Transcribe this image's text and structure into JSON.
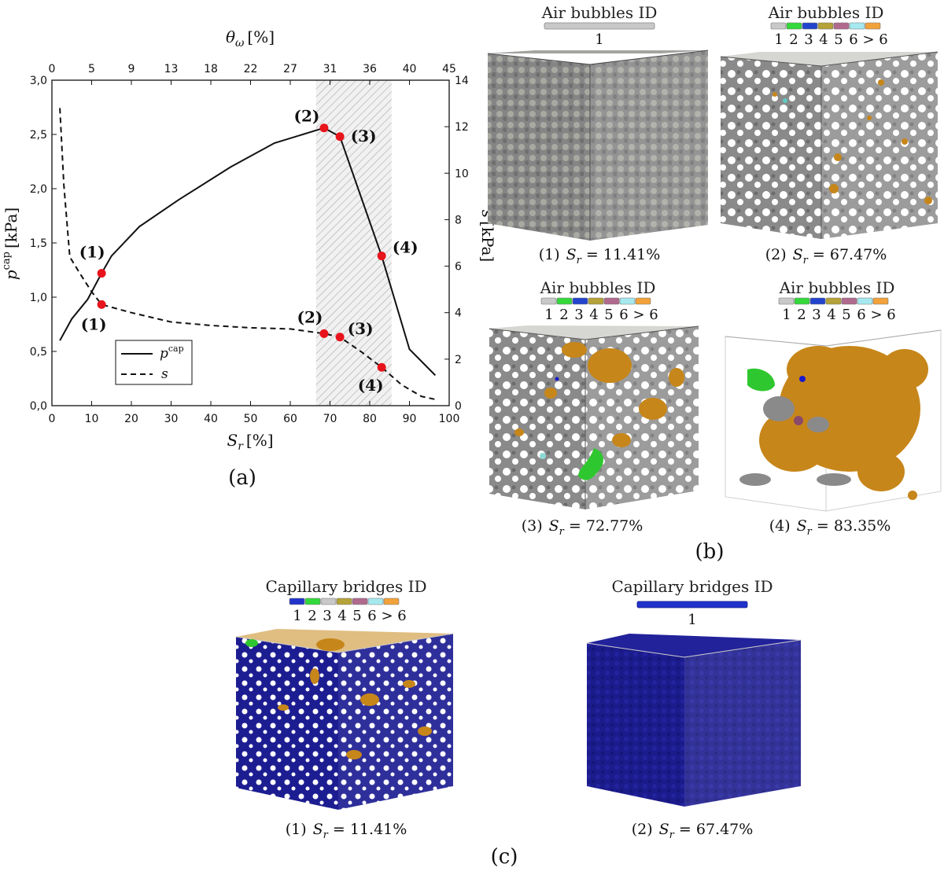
{
  "chart_data": {
    "type": "line",
    "panel_label": "(a)",
    "xlabel": "S",
    "xlabel_sub": "r",
    "xlabel_unit": "[%]",
    "xlim": [
      0,
      100
    ],
    "x_ticks": [
      "0",
      "10",
      "20",
      "30",
      "40",
      "50",
      "60",
      "70",
      "80",
      "90",
      "100"
    ],
    "top_xlabel": "θ",
    "top_xlabel_sub": "ω",
    "top_xlabel_unit": "[%]",
    "top_ticks": [
      "0",
      "5",
      "9",
      "13",
      "18",
      "22",
      "27",
      "31",
      "36",
      "40",
      "45"
    ],
    "top_tick_positions_sr": [
      0,
      10,
      20,
      30,
      40,
      50,
      60,
      70,
      80,
      90,
      100
    ],
    "ylabel": "p",
    "ylabel_sup": "cap",
    "ylabel_unit": "[kPa]",
    "ylim": [
      0,
      3.0
    ],
    "y_ticks": [
      "0,0",
      "0,5",
      "1,0",
      "1,5",
      "2,0",
      "2,5",
      "3,0"
    ],
    "y_tick_values": [
      0,
      0.5,
      1.0,
      1.5,
      2.0,
      2.5,
      3.0
    ],
    "y2label": "s",
    "y2label_unit": "[kPa]",
    "y2lim": [
      0,
      14
    ],
    "y2_ticks": [
      "0",
      "2",
      "4",
      "6",
      "8",
      "10",
      "12",
      "14"
    ],
    "y2_tick_values": [
      0,
      2,
      4,
      6,
      8,
      10,
      12,
      14
    ],
    "shaded_range": [
      66.5,
      85.5
    ],
    "series": [
      {
        "name": "p",
        "name_sup": "cap",
        "axis": "left",
        "style": "solid",
        "x": [
          2,
          5,
          9,
          12.5,
          15,
          22,
          32,
          45,
          56,
          68.5,
          72.5,
          83,
          90,
          96.5
        ],
        "y": [
          0.6,
          0.8,
          0.98,
          1.22,
          1.38,
          1.65,
          1.9,
          2.2,
          2.42,
          2.56,
          2.48,
          1.38,
          0.52,
          0.28
        ]
      },
      {
        "name": "s",
        "axis": "right",
        "style": "dashed",
        "x": [
          2,
          3,
          4.5,
          7,
          10,
          12.5,
          20,
          30,
          40,
          50,
          60,
          68.5,
          72.5,
          78,
          83,
          88,
          93,
          97
        ],
        "y": [
          12.8,
          9.5,
          6.4,
          5.7,
          4.9,
          4.35,
          4.0,
          3.6,
          3.45,
          3.35,
          3.3,
          3.1,
          2.95,
          2.3,
          1.65,
          0.9,
          0.4,
          0.25
        ]
      }
    ],
    "markers": [
      {
        "label": "(1)",
        "series": "p",
        "x": 12.5,
        "y": 1.22
      },
      {
        "label": "(2)",
        "series": "p",
        "x": 68.5,
        "y": 2.56
      },
      {
        "label": "(3)",
        "series": "p",
        "x": 72.5,
        "y": 2.48
      },
      {
        "label": "(4)",
        "series": "p",
        "x": 83,
        "y": 1.38
      },
      {
        "label": "(1)",
        "series": "s",
        "x": 12.5,
        "y": 4.35
      },
      {
        "label": "(2)",
        "series": "s",
        "x": 68.5,
        "y": 3.1
      },
      {
        "label": "(3)",
        "series": "s",
        "x": 72.5,
        "y": 2.95
      },
      {
        "label": "(4)",
        "series": "s",
        "x": 83,
        "y": 1.65
      }
    ],
    "legend_placement": "lower-left"
  },
  "panel_b": {
    "label": "(b)",
    "legend_title": "Air bubbles ID",
    "items": [
      {
        "caption_index": "(1)",
        "sr_value": "11.41%",
        "ids": [
          "1"
        ]
      },
      {
        "caption_index": "(2)",
        "sr_value": "67.47%",
        "ids": [
          "1",
          "2",
          "3",
          "4",
          "5",
          "6",
          ">",
          "6"
        ]
      },
      {
        "caption_index": "(3)",
        "sr_value": "72.77%",
        "ids": [
          "1",
          "2",
          "3",
          "4",
          "5",
          "6",
          ">",
          "6"
        ]
      },
      {
        "caption_index": "(4)",
        "sr_value": "83.35%",
        "ids": [
          "1",
          "2",
          "3",
          "4",
          "5",
          "6",
          ">",
          "6"
        ]
      }
    ]
  },
  "panel_c": {
    "label": "(c)",
    "legend_title": "Capillary bridges ID",
    "items": [
      {
        "caption_index": "(1)",
        "sr_value": "11.41%",
        "ids": [
          "1",
          "2",
          "3",
          "4",
          "5",
          "6",
          ">",
          "6"
        ]
      },
      {
        "caption_index": "(2)",
        "sr_value": "67.47%",
        "ids": [
          "1"
        ]
      }
    ]
  },
  "caption_var": "S",
  "caption_var_sub": "r",
  "colors": {
    "marker_red": "#e8141b",
    "shade": "#bdbdbd",
    "cube_gray": "#7d7d7d",
    "bubble_orange": "#c7861a",
    "bridge_blue": "#1a1a8f",
    "id_scale": [
      "#c8c8c8",
      "#33d83a",
      "#2244cc",
      "#b5a238",
      "#b06a8e",
      "#a5e9ef",
      "#f2a23a"
    ],
    "bridge_scale": [
      "#2233cc",
      "#33d83a",
      "#c8c8c8",
      "#b5a238",
      "#b06a8e",
      "#a5e9ef",
      "#f2a23a"
    ]
  }
}
